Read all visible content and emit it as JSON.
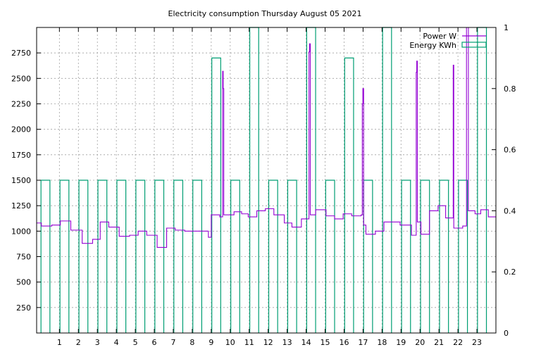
{
  "chart_data": {
    "type": "line",
    "title": "Electricity consumption Thursday August 05 2021",
    "xlabel": "",
    "ylabel": "",
    "xlim": [
      -0.2,
      24.0
    ],
    "ylim": [
      0,
      3000
    ],
    "y2lim": [
      0,
      1
    ],
    "grid": true,
    "legend_position": "top-right",
    "x_ticks": [
      1,
      2,
      3,
      4,
      5,
      6,
      7,
      8,
      9,
      10,
      11,
      12,
      13,
      14,
      15,
      16,
      17,
      18,
      19,
      20,
      21,
      22,
      23
    ],
    "y_ticks": [
      250,
      500,
      750,
      1000,
      1250,
      1500,
      1750,
      2000,
      2250,
      2500,
      2750
    ],
    "y2_ticks": [
      0,
      0.2,
      0.4,
      0.6,
      0.8,
      1
    ],
    "y2_tick_labels": [
      "0",
      "0.2",
      "0.4",
      "0.6",
      "0.8",
      "1"
    ],
    "series": [
      {
        "name": "Power W",
        "axis": "y",
        "color": "#9400d3",
        "style": "steps",
        "points": [
          [
            -0.2,
            1080
          ],
          [
            0.05,
            1050
          ],
          [
            0.6,
            1060
          ],
          [
            1.05,
            1100
          ],
          [
            1.6,
            1010
          ],
          [
            2.2,
            880
          ],
          [
            2.75,
            920
          ],
          [
            3.15,
            1090
          ],
          [
            3.6,
            1040
          ],
          [
            4.15,
            950
          ],
          [
            4.7,
            960
          ],
          [
            5.15,
            1000
          ],
          [
            5.6,
            960
          ],
          [
            6.15,
            840
          ],
          [
            6.65,
            1030
          ],
          [
            7.1,
            1010
          ],
          [
            7.6,
            1000
          ],
          [
            8.85,
            940
          ],
          [
            9.0,
            1160
          ],
          [
            9.45,
            1140
          ],
          [
            9.6,
            2570
          ],
          [
            9.63,
            2400
          ],
          [
            9.66,
            1160
          ],
          [
            10.2,
            1190
          ],
          [
            10.6,
            1170
          ],
          [
            10.95,
            1140
          ],
          [
            11.4,
            1200
          ],
          [
            11.85,
            1220
          ],
          [
            12.3,
            1160
          ],
          [
            12.85,
            1080
          ],
          [
            13.25,
            1040
          ],
          [
            13.75,
            1120
          ],
          [
            14.15,
            2760
          ],
          [
            14.18,
            2840
          ],
          [
            14.22,
            1160
          ],
          [
            14.5,
            1210
          ],
          [
            15.05,
            1150
          ],
          [
            15.5,
            1120
          ],
          [
            15.95,
            1170
          ],
          [
            16.4,
            1150
          ],
          [
            16.9,
            1160
          ],
          [
            16.96,
            2250
          ],
          [
            16.99,
            2400
          ],
          [
            17.03,
            1060
          ],
          [
            17.15,
            970
          ],
          [
            17.65,
            1000
          ],
          [
            18.1,
            1090
          ],
          [
            18.95,
            1060
          ],
          [
            19.55,
            960
          ],
          [
            19.8,
            2560
          ],
          [
            19.83,
            2670
          ],
          [
            19.86,
            1090
          ],
          [
            20.05,
            970
          ],
          [
            20.5,
            1200
          ],
          [
            20.95,
            1250
          ],
          [
            21.35,
            1130
          ],
          [
            21.75,
            2630
          ],
          [
            21.78,
            1030
          ],
          [
            22.25,
            1050
          ],
          [
            22.45,
            3000
          ],
          [
            22.55,
            1200
          ],
          [
            22.9,
            1170
          ],
          [
            23.2,
            1210
          ],
          [
            23.6,
            1140
          ],
          [
            24.0,
            1140
          ]
        ]
      },
      {
        "name": "Energy KWh",
        "axis": "y2",
        "color": "#009e73",
        "style": "boxes",
        "boxes": [
          [
            0.0,
            0.5
          ],
          [
            1.0,
            0.5
          ],
          [
            2.0,
            0.5
          ],
          [
            3.0,
            0.5
          ],
          [
            4.0,
            0.5
          ],
          [
            5.0,
            0.5
          ],
          [
            6.0,
            0.5
          ],
          [
            7.0,
            0.5
          ],
          [
            8.0,
            0.5
          ],
          [
            9.0,
            0.9
          ],
          [
            10.0,
            0.5
          ],
          [
            11.0,
            1.0
          ],
          [
            12.0,
            0.5
          ],
          [
            13.0,
            0.5
          ],
          [
            14.0,
            1.0
          ],
          [
            15.0,
            0.5
          ],
          [
            16.0,
            0.9
          ],
          [
            17.0,
            0.5
          ],
          [
            18.0,
            1.0
          ],
          [
            19.0,
            0.5
          ],
          [
            20.0,
            0.5
          ],
          [
            21.0,
            0.5
          ],
          [
            22.0,
            0.5
          ],
          [
            23.0,
            1.0
          ]
        ]
      }
    ]
  }
}
